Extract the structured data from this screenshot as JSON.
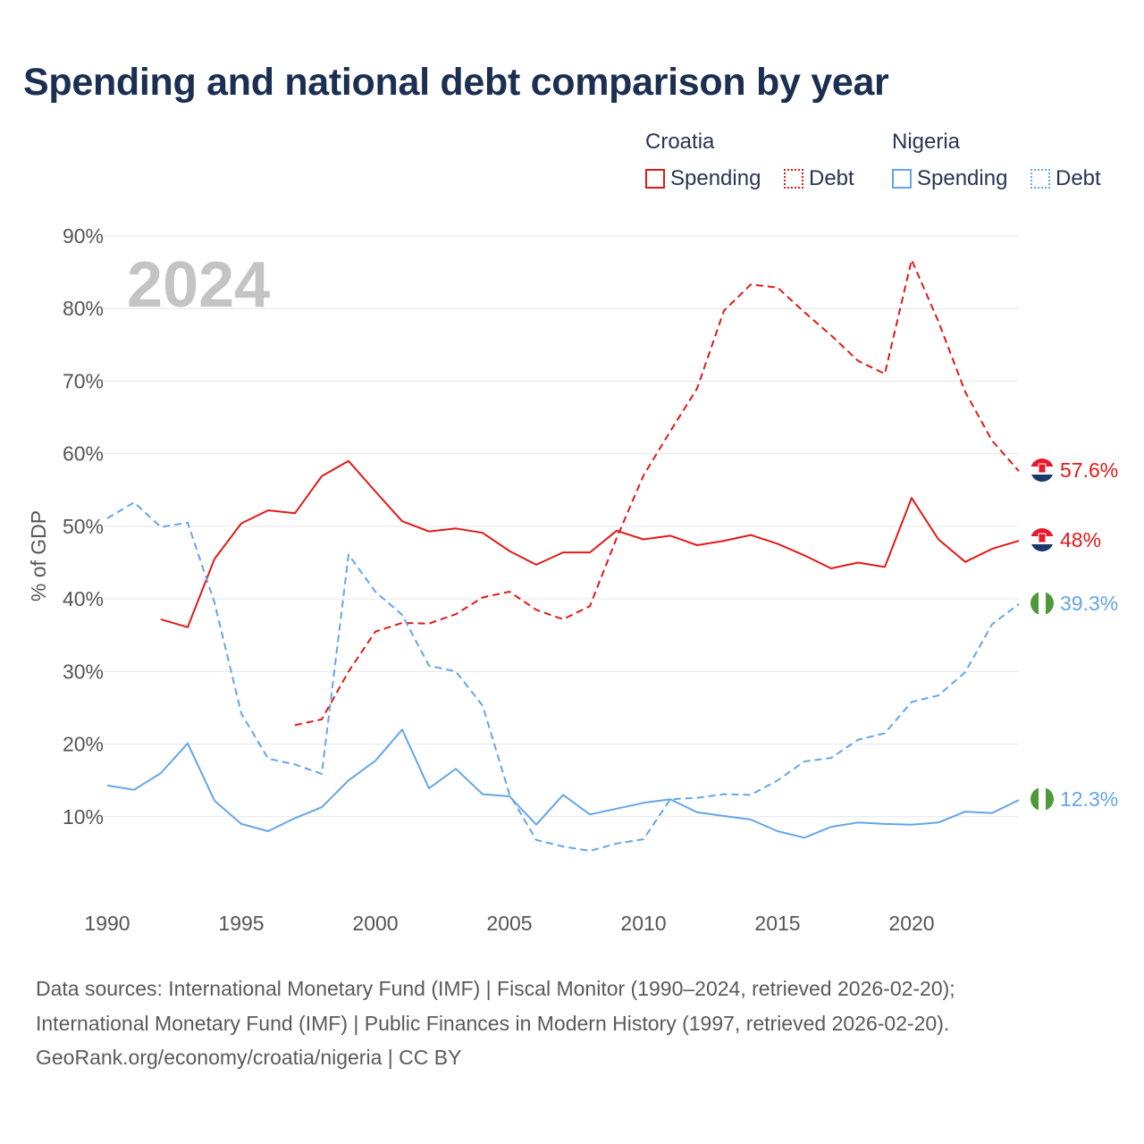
{
  "title": "Spending and national debt comparison by year",
  "legend": {
    "groups": [
      {
        "name": "Croatia",
        "items": [
          {
            "label": "Spending",
            "style": "solid",
            "color": "#e31818"
          },
          {
            "label": "Debt",
            "style": "dotted",
            "color": "#e31818"
          }
        ]
      },
      {
        "name": "Nigeria",
        "items": [
          {
            "label": "Spending",
            "style": "solid",
            "color": "#64a6e8"
          },
          {
            "label": "Debt",
            "style": "dotted",
            "color": "#64a6e8"
          }
        ]
      }
    ]
  },
  "sources": [
    "Data sources: International Monetary Fund (IMF) | Fiscal Monitor (1990–2024, retrieved 2026-02-20);",
    "International Monetary Fund (IMF) | Public Finances in Modern History (1997, retrieved 2026-02-20).",
    "GeoRank.org/economy/croatia/nigeria | CC BY"
  ],
  "chart_data": {
    "type": "line",
    "title": "Spending and national debt comparison by year",
    "year_label": "2024",
    "ylabel": "% of GDP",
    "xlabel": "",
    "xlim": [
      1990,
      2024
    ],
    "ylim": [
      0,
      90
    ],
    "yticks": [
      10,
      20,
      30,
      40,
      50,
      60,
      70,
      80,
      90
    ],
    "ytick_labels": [
      "10%",
      "20%",
      "30%",
      "40%",
      "50%",
      "60%",
      "70%",
      "80%",
      "90%"
    ],
    "xticks": [
      1990,
      1995,
      2000,
      2005,
      2010,
      2015,
      2020
    ],
    "xtick_labels": [
      "1990",
      "1995",
      "2000",
      "2005",
      "2010",
      "2015",
      "2020"
    ],
    "grid": true,
    "legend_position": "top-right",
    "series": [
      {
        "name": "Croatia Spending",
        "country": "Croatia",
        "metric": "Spending",
        "color": "#e31818",
        "dash": "solid",
        "end_label": "48%",
        "x": [
          1992,
          1993,
          1994,
          1995,
          1996,
          1997,
          1998,
          1999,
          2000,
          2001,
          2002,
          2003,
          2004,
          2005,
          2006,
          2007,
          2008,
          2009,
          2010,
          2011,
          2012,
          2013,
          2014,
          2015,
          2016,
          2017,
          2018,
          2019,
          2020,
          2021,
          2022,
          2023,
          2024
        ],
        "values": [
          37.2,
          36.1,
          45.5,
          50.4,
          52.2,
          51.8,
          56.9,
          59.0,
          54.8,
          50.7,
          49.3,
          49.7,
          49.1,
          46.6,
          44.7,
          46.4,
          46.4,
          49.4,
          48.2,
          48.7,
          47.4,
          48.0,
          48.8,
          47.6,
          46.0,
          44.2,
          45.0,
          44.4,
          53.9,
          48.2,
          45.1,
          46.9,
          48.0
        ]
      },
      {
        "name": "Croatia Debt",
        "country": "Croatia",
        "metric": "Debt",
        "color": "#e31818",
        "dash": "dashed",
        "end_label": "57.6%",
        "x": [
          1997,
          1998,
          1999,
          2000,
          2001,
          2002,
          2003,
          2004,
          2005,
          2006,
          2007,
          2008,
          2009,
          2010,
          2011,
          2012,
          2013,
          2014,
          2015,
          2016,
          2017,
          2018,
          2019,
          2020,
          2021,
          2022,
          2023,
          2024
        ],
        "values": [
          22.6,
          23.4,
          30.0,
          35.5,
          36.7,
          36.6,
          37.9,
          40.2,
          41.0,
          38.5,
          37.2,
          39.0,
          48.4,
          57.0,
          63.1,
          69.0,
          79.7,
          83.3,
          82.9,
          79.5,
          76.3,
          72.8,
          71.0,
          86.7,
          78.2,
          68.5,
          61.8,
          57.6
        ]
      },
      {
        "name": "Nigeria Spending",
        "country": "Nigeria",
        "metric": "Spending",
        "color": "#64a6e8",
        "dash": "solid",
        "end_label": "12.3%",
        "x": [
          1990,
          1991,
          1992,
          1993,
          1994,
          1995,
          1996,
          1997,
          1998,
          1999,
          2000,
          2001,
          2002,
          2003,
          2004,
          2005,
          2006,
          2007,
          2008,
          2009,
          2010,
          2011,
          2012,
          2013,
          2014,
          2015,
          2016,
          2017,
          2018,
          2019,
          2020,
          2021,
          2022,
          2023,
          2024
        ],
        "values": [
          14.3,
          13.7,
          16.0,
          20.1,
          12.2,
          9.0,
          8.0,
          9.8,
          11.3,
          15.0,
          17.7,
          22.0,
          13.9,
          16.6,
          13.1,
          12.8,
          8.9,
          13.0,
          10.3,
          11.1,
          11.9,
          12.4,
          10.6,
          10.1,
          9.6,
          8.0,
          7.1,
          8.6,
          9.2,
          9.0,
          8.9,
          9.2,
          10.7,
          10.5,
          12.3
        ]
      },
      {
        "name": "Nigeria Debt",
        "country": "Nigeria",
        "metric": "Debt",
        "color": "#64a6e8",
        "dash": "dashed",
        "end_label": "39.3%",
        "x": [
          1990,
          1991,
          1992,
          1993,
          1994,
          1995,
          1996,
          1997,
          1998,
          1999,
          2000,
          2001,
          2002,
          2003,
          2004,
          2005,
          2006,
          2007,
          2008,
          2009,
          2010,
          2011,
          2012,
          2013,
          2014,
          2015,
          2016,
          2017,
          2018,
          2019,
          2020,
          2021,
          2022,
          2023,
          2024
        ],
        "values": [
          51.1,
          53.3,
          49.9,
          50.5,
          39.5,
          24.2,
          18.0,
          17.2,
          15.9,
          46.1,
          41.0,
          37.8,
          30.8,
          30.0,
          25.3,
          13.1,
          6.8,
          5.9,
          5.3,
          6.3,
          6.9,
          12.4,
          12.6,
          13.1,
          13.0,
          15.0,
          17.6,
          18.1,
          20.6,
          21.5,
          25.8,
          26.7,
          29.9,
          36.5,
          39.3
        ]
      }
    ]
  }
}
